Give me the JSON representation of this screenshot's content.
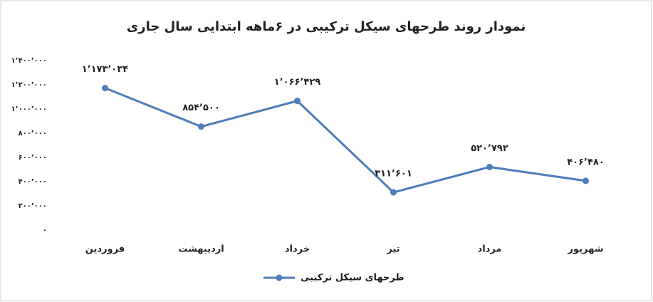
{
  "chart_data": {
    "type": "line",
    "title": "نمودار روند طرحهای سیکل ترکیبی در ۶ماهه ابتدایی سال جاری",
    "categories": [
      "فروردین",
      "اردیبهشت",
      "خرداد",
      "تیر",
      "مرداد",
      "شهریور"
    ],
    "series": [
      {
        "name": "طرحهای سیکل ترکیبی",
        "color": "#4f7cba",
        "values": [
          1173034,
          854500,
          1066429,
          311601,
          520792,
          406480
        ],
        "value_labels": [
          "۱٬۱۷۳٬۰۳۴",
          "۸۵۴٬۵۰۰",
          "۱٬۰۶۶٬۴۲۹",
          "۳۱۱٬۶۰۱",
          "۵۲۰٬۷۹۲",
          "۴۰۶٬۴۸۰"
        ]
      }
    ],
    "ylim": [
      0,
      1400000
    ],
    "yticks": [
      {
        "value": 0,
        "label": "۰"
      },
      {
        "value": 200000,
        "label": "۲۰۰٬۰۰۰"
      },
      {
        "value": 400000,
        "label": "۴۰۰٬۰۰۰"
      },
      {
        "value": 600000,
        "label": "۶۰۰٬۰۰۰"
      },
      {
        "value": 800000,
        "label": "۸۰۰٬۰۰۰"
      },
      {
        "value": 1000000,
        "label": "۱٬۰۰۰٬۰۰۰"
      },
      {
        "value": 1200000,
        "label": "۱٬۲۰۰٬۰۰۰"
      },
      {
        "value": 1400000,
        "label": "۱٬۴۰۰٬۰۰۰"
      }
    ],
    "grid": false,
    "legend": "bottom"
  }
}
